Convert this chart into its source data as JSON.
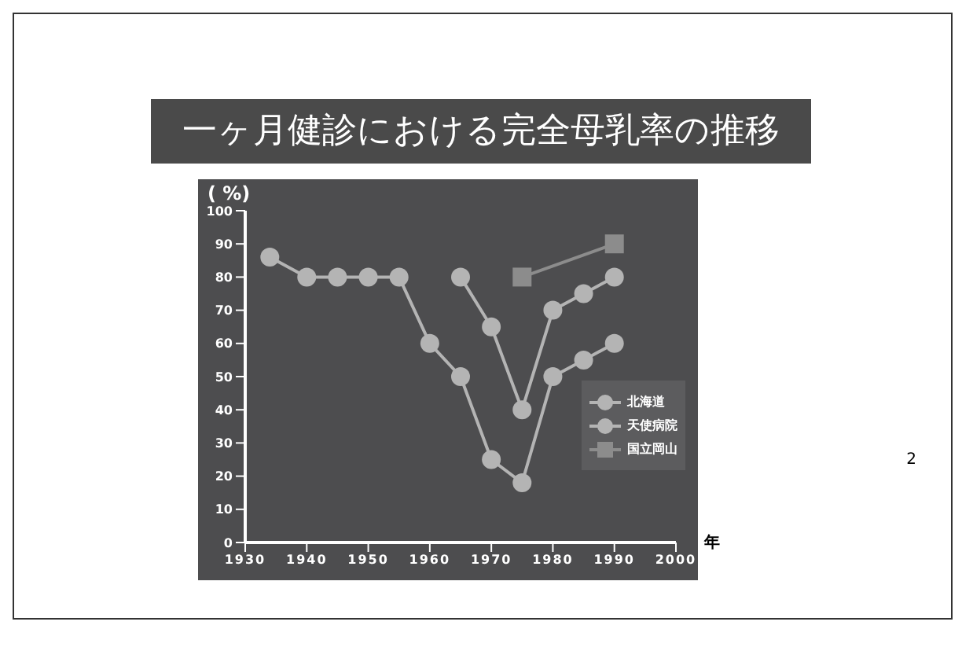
{
  "chart_data": {
    "type": "line",
    "title": "一ヶ月健診における完全母乳率の推移",
    "ylabel": "( %)",
    "xlabel": "年",
    "annotations": [
      "2"
    ],
    "series": [
      {
        "name": "北海道",
        "color": "#b4b4b4",
        "marker": "circle",
        "x": [
          1934,
          1940,
          1945,
          1950,
          1955,
          1960,
          1965,
          1970,
          1975,
          1980,
          1985,
          1990
        ],
        "values": [
          86,
          80,
          80,
          80,
          80,
          60,
          50,
          25,
          18,
          50,
          55,
          60
        ]
      },
      {
        "name": "天使病院",
        "color": "#b4b4b4",
        "marker": "circle",
        "x": [
          1965,
          1970,
          1975,
          1980,
          1985,
          1990
        ],
        "values": [
          80,
          65,
          40,
          70,
          75,
          80
        ]
      },
      {
        "name": "国立岡山",
        "color": "#8c8c8c",
        "marker": "square",
        "x": [
          1975,
          1990
        ],
        "values": [
          80,
          90
        ]
      }
    ],
    "xlim": [
      1930,
      2000
    ],
    "xticks": [
      1930,
      1940,
      1950,
      1960,
      1970,
      1980,
      1990,
      2000
    ],
    "ylim": [
      0,
      100
    ],
    "yticks": [
      0,
      10,
      20,
      30,
      40,
      50,
      60,
      70,
      80,
      90,
      100
    ],
    "legend": "right",
    "grid": false
  }
}
